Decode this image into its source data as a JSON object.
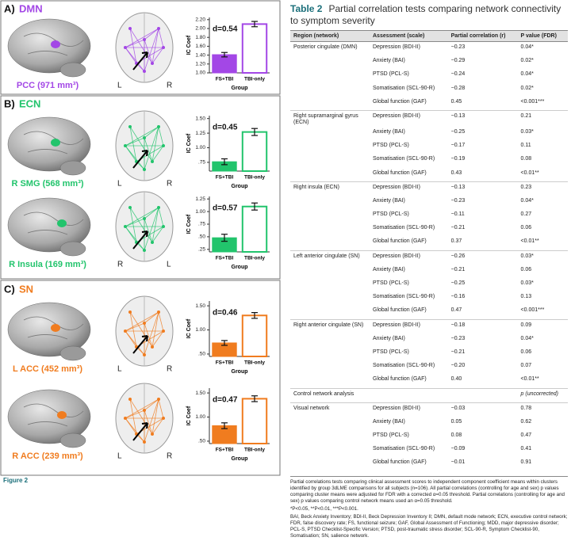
{
  "panels": [
    {
      "letter": "A)",
      "network": "DMN",
      "color": "#a347e6",
      "rows": [
        {
          "region": "PCC (971 mm³)",
          "left": "L",
          "right": "R"
        }
      ]
    },
    {
      "letter": "B)",
      "network": "ECN",
      "color": "#22c46c",
      "rows": [
        {
          "region": "R SMG (568 mm³)",
          "left": "L",
          "right": "R"
        },
        {
          "region": "R Insula (169 mm³)",
          "left": "R",
          "right": "L"
        }
      ]
    },
    {
      "letter": "C)",
      "network": "SN",
      "color": "#f07c1f",
      "rows": [
        {
          "region": "L ACC (452 mm³)",
          "left": "L",
          "right": "R"
        },
        {
          "region": "R ACC (239 mm³)",
          "left": "L",
          "right": "R"
        }
      ]
    }
  ],
  "chart_data": [
    {
      "type": "bar",
      "categories": [
        "FS+TBI",
        "TBI-only"
      ],
      "values": [
        1.41,
        2.1
      ],
      "errors": [
        0.05,
        0.06
      ],
      "color": "#a347e6",
      "ylabel": "IC Coef",
      "xlabel": "Group",
      "annotation": "d=0.54",
      "ylim": [
        1.0,
        2.25
      ],
      "yticks": [
        {
          "value": 1.0,
          "label": "1.00"
        },
        {
          "value": 1.2,
          "label": "1.20"
        },
        {
          "value": 1.4,
          "label": "1.40"
        },
        {
          "value": 1.6,
          "label": "1.60"
        },
        {
          "value": 1.8,
          "label": "1.80"
        },
        {
          "value": 2.0,
          "label": "2.00"
        },
        {
          "value": 2.2,
          "label": "2.20"
        }
      ]
    },
    {
      "type": "bar",
      "categories": [
        "FS+TBI",
        "TBI-only"
      ],
      "values": [
        0.76,
        1.27
      ],
      "errors": [
        0.05,
        0.06
      ],
      "color": "#22c46c",
      "ylabel": "IC Coef",
      "xlabel": "Group",
      "annotation": "d=0.45",
      "ylim": [
        0.6,
        1.55
      ],
      "yticks": [
        {
          "value": 0.75,
          "label": ".75"
        },
        {
          "value": 1.0,
          "label": "1.00"
        },
        {
          "value": 1.25,
          "label": "1.25"
        },
        {
          "value": 1.5,
          "label": "1.50"
        }
      ]
    },
    {
      "type": "bar",
      "categories": [
        "FS+TBI",
        "TBI-only"
      ],
      "values": [
        0.48,
        1.1
      ],
      "errors": [
        0.07,
        0.07
      ],
      "color": "#22c46c",
      "ylabel": "IC Coef",
      "xlabel": "Group",
      "annotation": "d=0.57",
      "ylim": [
        0.2,
        1.3
      ],
      "yticks": [
        {
          "value": 0.25,
          "label": ".25"
        },
        {
          "value": 0.5,
          "label": ".50"
        },
        {
          "value": 0.75,
          "label": ".75"
        },
        {
          "value": 1.0,
          "label": "1.00"
        },
        {
          "value": 1.25,
          "label": "1.25"
        }
      ]
    },
    {
      "type": "bar",
      "categories": [
        "FS+TBI",
        "TBI-only"
      ],
      "values": [
        0.73,
        1.3
      ],
      "errors": [
        0.05,
        0.06
      ],
      "color": "#f07c1f",
      "ylabel": "IC Coef",
      "xlabel": "Group",
      "annotation": "d=0.46",
      "ylim": [
        0.45,
        1.6
      ],
      "yticks": [
        {
          "value": 0.5,
          "label": ".50"
        },
        {
          "value": 1.0,
          "label": "1.00"
        },
        {
          "value": 1.5,
          "label": "1.50"
        }
      ]
    },
    {
      "type": "bar",
      "categories": [
        "FS+TBI",
        "TBI-only"
      ],
      "values": [
        0.82,
        1.38
      ],
      "errors": [
        0.06,
        0.06
      ],
      "color": "#f07c1f",
      "ylabel": "IC Coef",
      "xlabel": "Group",
      "annotation": "d=0.47",
      "ylim": [
        0.45,
        1.6
      ],
      "yticks": [
        {
          "value": 0.5,
          "label": ".50"
        },
        {
          "value": 1.0,
          "label": "1.00"
        },
        {
          "value": 1.5,
          "label": "1.50"
        }
      ]
    }
  ],
  "caption": "Figure 2",
  "table": {
    "label": "Table 2",
    "title": "Partial correlation tests comparing network connectivity to symptom severity",
    "columns": [
      "Region (network)",
      "Assessment (scale)",
      "Partial correlation (r)",
      "P value (FDR)"
    ],
    "groups": [
      {
        "region": "Posterior cingulate (DMN)",
        "rows": [
          [
            "Depression (BDI-II)",
            "−0.23",
            "0.04*"
          ],
          [
            "Anxiety (BAI)",
            "−0.29",
            "0.02*"
          ],
          [
            "PTSD (PCL-S)",
            "−0.24",
            "0.04*"
          ],
          [
            "Somatisation (SCL-90-R)",
            "−0.28",
            "0.02*"
          ],
          [
            "Global function (GAF)",
            "0.45",
            "<0.001***"
          ]
        ]
      },
      {
        "region": "Right supramarginal gyrus (ECN)",
        "rows": [
          [
            "Depression (BDI-II)",
            "−0.13",
            "0.21"
          ],
          [
            "Anxiety (BAI)",
            "−0.25",
            "0.03*"
          ],
          [
            "PTSD (PCL-S)",
            "−0.17",
            "0.11"
          ],
          [
            "Somatisation (SCL-90-R)",
            "−0.19",
            "0.08"
          ],
          [
            "Global function (GAF)",
            "0.43",
            "<0.01**"
          ]
        ]
      },
      {
        "region": "Right insula (ECN)",
        "rows": [
          [
            "Depression (BDI-II)",
            "−0.13",
            "0.23"
          ],
          [
            "Anxiety (BAI)",
            "−0.23",
            "0.04*"
          ],
          [
            "PTSD (PCL-S)",
            "−0.11",
            "0.27"
          ],
          [
            "Somatisation (SCL-90-R)",
            "−0.21",
            "0.06"
          ],
          [
            "Global function (GAF)",
            "0.37",
            "<0.01**"
          ]
        ]
      },
      {
        "region": "Left anterior cingulate (SN)",
        "rows": [
          [
            "Depression (BDI-II)",
            "−0.26",
            "0.03*"
          ],
          [
            "Anxiety (BAI)",
            "−0.21",
            "0.06"
          ],
          [
            "PTSD (PCL-S)",
            "−0.25",
            "0.03*"
          ],
          [
            "Somatisation (SCL-90-R)",
            "−0.16",
            "0.13"
          ],
          [
            "Global function (GAF)",
            "0.47",
            "<0.001***"
          ]
        ]
      },
      {
        "region": "Right anterior cingulate (SN)",
        "rows": [
          [
            "Depression (BDI-II)",
            "−0.18",
            "0.09"
          ],
          [
            "Anxiety (BAI)",
            "−0.23",
            "0.04*"
          ],
          [
            "PTSD (PCL-S)",
            "−0.21",
            "0.06"
          ],
          [
            "Somatisation (SCL-90-R)",
            "−0.20",
            "0.07"
          ],
          [
            "Global function (GAF)",
            "0.40",
            "<0.01**"
          ]
        ]
      }
    ],
    "control": {
      "label": "Control network analysis",
      "p_label": "p (uncorrected)"
    },
    "control_groups": [
      {
        "region": "Visual network",
        "rows": [
          [
            "Depression (BDI-II)",
            "−0.03",
            "0.78"
          ],
          [
            "Anxiety (BAI)",
            "0.05",
            "0.62"
          ],
          [
            "PTSD (PCL-S)",
            "0.08",
            "0.47"
          ],
          [
            "Somatisation (SCL-90-R)",
            "−0.09",
            "0.41"
          ],
          [
            "Global function (GAF)",
            "−0.01",
            "0.91"
          ]
        ]
      }
    ],
    "notes": [
      "Partial correlations tests comparing clinical assessment scores to independent component coefficient means within clusters identified by group 3dLME comparisons for all subjects (n=106). All partial correlations (controlling for age and sex) p values comparing cluster means were adjusted for FDR with a corrected α=0.05 threshold. Partial correlations (controlling for age and sex) p values comparing control network means used an α=0.05 threshold.",
      "*P<0.05, **P<0.01, ***P<0.001.",
      "BAI, Beck Anxiety Inventory; BDI-II, Beck Depression Inventory II; DMN, default mode network; ECN, executive control network; FDR, false discovery rate; FS, functional seizure; GAF, Global Assessment of Functioning; MDD, major depressive disorder; PCL-S, PTSD Checklist-Specific Version; PTSD, post-traumatic stress disorder; SCL-90-R, Symptom Checklist-90, Somatisation; SN, salience network."
    ]
  }
}
